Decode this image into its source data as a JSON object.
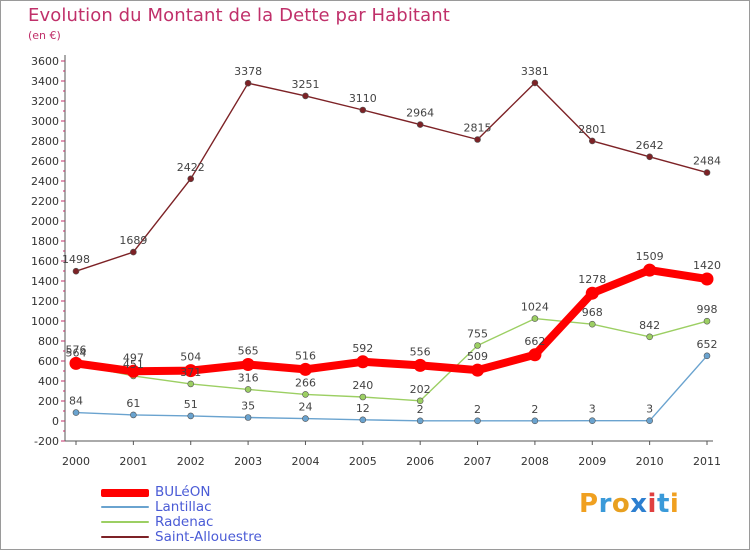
{
  "header": {
    "title": "Evolution du Montant de la Dette par Habitant",
    "subtitle": "(en €)"
  },
  "logo": {
    "text": "Proxiti",
    "colors": [
      "#f0a020",
      "#3a9ad9",
      "#e8a020",
      "#2d7fd0",
      "#e04040",
      "#3a9ad9",
      "#f0a020"
    ]
  },
  "chart_data": {
    "type": "line",
    "xlabel": "",
    "ylabel": "",
    "x": [
      "2000",
      "2001",
      "2002",
      "2003",
      "2004",
      "2005",
      "2006",
      "2007",
      "2008",
      "2009",
      "2010",
      "2011"
    ],
    "ylim": [
      -200,
      3600
    ],
    "yticks": [
      -200,
      0,
      200,
      400,
      600,
      800,
      1000,
      1200,
      1400,
      1600,
      1800,
      2000,
      2200,
      2400,
      2600,
      2800,
      3000,
      3200,
      3400,
      3600
    ],
    "grid": false,
    "legend_position": "bottom-left",
    "series": [
      {
        "name": "BULéON",
        "color": "#ff0000",
        "emphasis": true,
        "values": [
          576,
          497,
          504,
          565,
          516,
          592,
          556,
          509,
          662,
          1278,
          1509,
          1420
        ]
      },
      {
        "name": "Lantillac",
        "color": "#6aa3cf",
        "emphasis": false,
        "values": [
          84,
          61,
          51,
          35,
          24,
          12,
          2,
          2,
          2,
          3,
          3,
          652
        ]
      },
      {
        "name": "Radenac",
        "color": "#9ccf63",
        "emphasis": false,
        "values": [
          564,
          451,
          371,
          316,
          266,
          240,
          202,
          755,
          1024,
          968,
          842,
          998
        ]
      },
      {
        "name": "Saint-Allouestre",
        "color": "#7d2226",
        "emphasis": false,
        "values": [
          1498,
          1689,
          2422,
          3378,
          3251,
          3110,
          2964,
          2815,
          3381,
          2801,
          2642,
          2484
        ]
      }
    ]
  }
}
